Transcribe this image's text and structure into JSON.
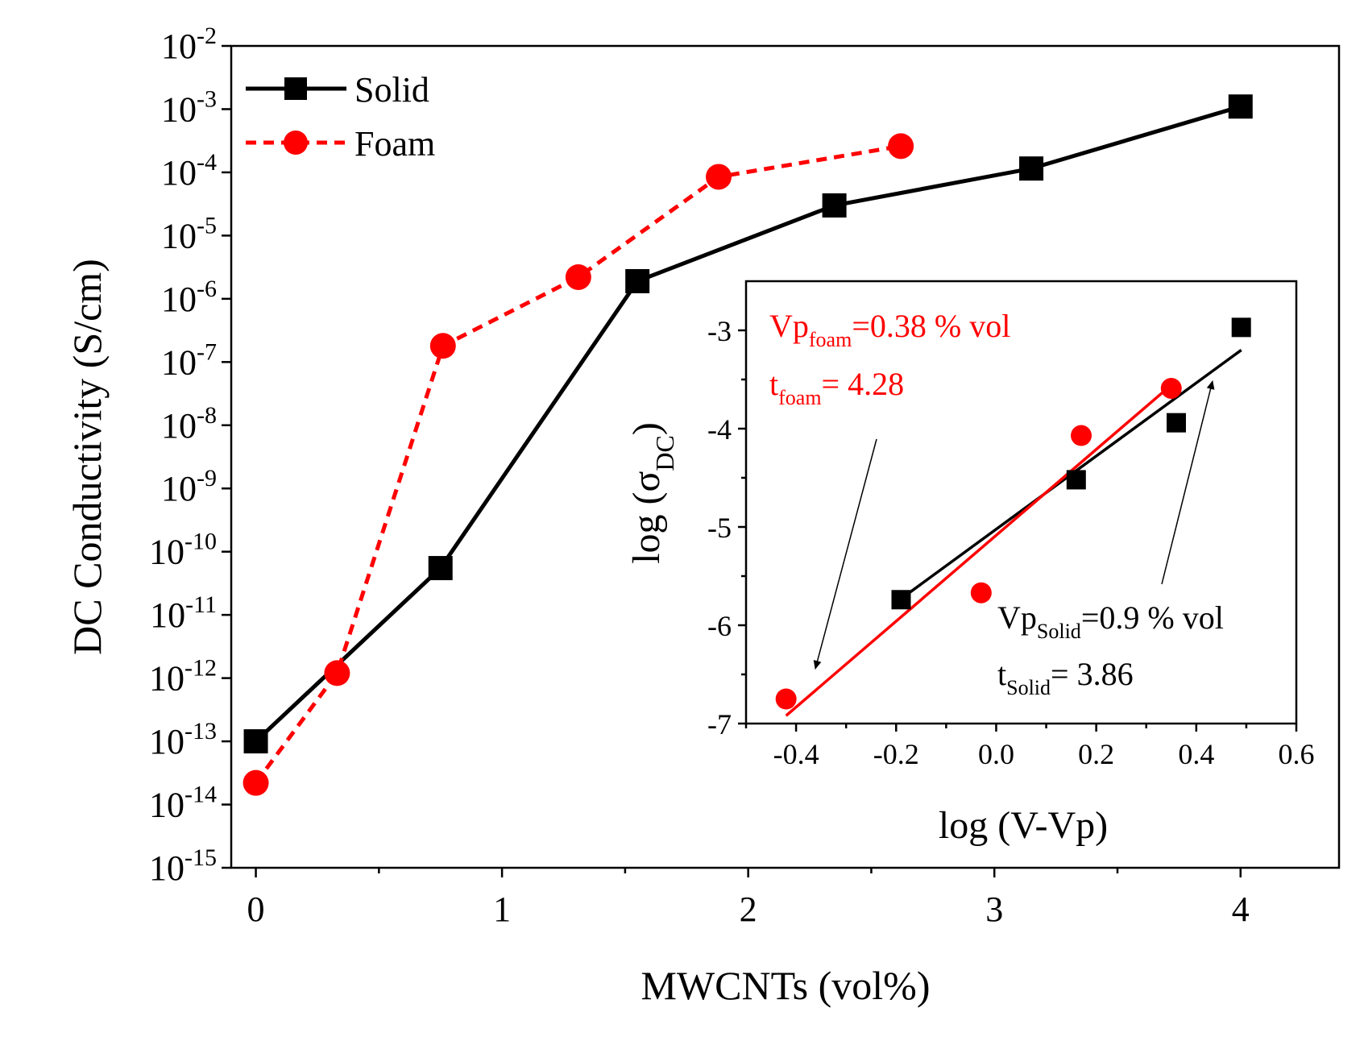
{
  "chart_data": [
    {
      "type": "line",
      "title": "",
      "xlabel": "MWCNTs (vol%)",
      "ylabel": "DC Conductivity (S/cm)",
      "xlim": [
        -0.1,
        4.4
      ],
      "ylim_exponent": [
        -15,
        -2
      ],
      "y_scale": "log",
      "x_ticks": [
        0,
        1,
        2,
        3,
        4
      ],
      "y_tick_exponents": [
        -15,
        -14,
        -13,
        -12,
        -11,
        -10,
        -9,
        -8,
        -7,
        -6,
        -5,
        -4,
        -3,
        -2
      ],
      "legend_placement": "top-left",
      "series": [
        {
          "name": "Solid",
          "color": "#000000",
          "marker": "square",
          "line_style": "solid",
          "x": [
            0.0,
            0.75,
            1.55,
            2.35,
            3.15,
            4.0
          ],
          "y": [
            1e-13,
            5.5e-11,
            1.9e-06,
            3e-05,
            0.000115,
            0.0011
          ]
        },
        {
          "name": "Foam",
          "color": "#ff0000",
          "marker": "circle",
          "line_style": "dashed",
          "x": [
            0.0,
            0.33,
            0.76,
            1.31,
            1.88,
            2.62
          ],
          "y": [
            2.2e-14,
            1.2e-12,
            1.8e-07,
            2.2e-06,
            8.5e-05,
            0.00026
          ]
        }
      ]
    },
    {
      "type": "scatter",
      "title": "",
      "xlabel": "log (V-Vp)",
      "ylabel_main": "log (σ",
      "ylabel_sub": "DC",
      "ylabel_close": ")",
      "xlim": [
        -0.5,
        0.6
      ],
      "ylim": [
        -7,
        -2.5
      ],
      "x_ticks": [
        -0.4,
        -0.2,
        0.0,
        0.2,
        0.4,
        0.6
      ],
      "x_tick_labels": [
        "-0.4",
        "-0.2",
        "0.0",
        "0.2",
        "0.4",
        "0.6"
      ],
      "y_ticks": [
        -7,
        -6,
        -5,
        -4,
        -3
      ],
      "y_tick_labels": [
        "-7",
        "-6",
        "-5",
        "-4",
        "-3"
      ],
      "series": [
        {
          "name": "Solid",
          "color": "#000000",
          "marker": "square",
          "x": [
            -0.19,
            0.16,
            0.36,
            0.49
          ],
          "y": [
            -5.74,
            -4.52,
            -3.94,
            -2.97
          ],
          "fit_line": {
            "x": [
              -0.19,
              0.49
            ],
            "y": [
              -5.73,
              -3.2
            ]
          }
        },
        {
          "name": "Foam",
          "color": "#ff0000",
          "marker": "circle",
          "x": [
            -0.42,
            -0.03,
            0.17,
            0.35
          ],
          "y": [
            -6.75,
            -5.67,
            -4.07,
            -3.59
          ],
          "fit_line": {
            "x": [
              -0.42,
              0.34
            ],
            "y": [
              -6.92,
              -3.6
            ]
          }
        }
      ],
      "annotations": {
        "foam_vp_main": "Vp",
        "foam_vp_sub": "foam",
        "foam_vp_value": "=0.38 % vol",
        "foam_t_main": "t",
        "foam_t_sub": "foam",
        "foam_t_value": "= 4.28",
        "solid_vp_main": "Vp",
        "solid_vp_sub": "Solid",
        "solid_vp_value": "=0.9 % vol",
        "solid_t_main": "t",
        "solid_t_sub": "Solid",
        "solid_t_value": "= 3.86",
        "foam_color": "#ff0000",
        "solid_color": "#000000"
      }
    }
  ]
}
